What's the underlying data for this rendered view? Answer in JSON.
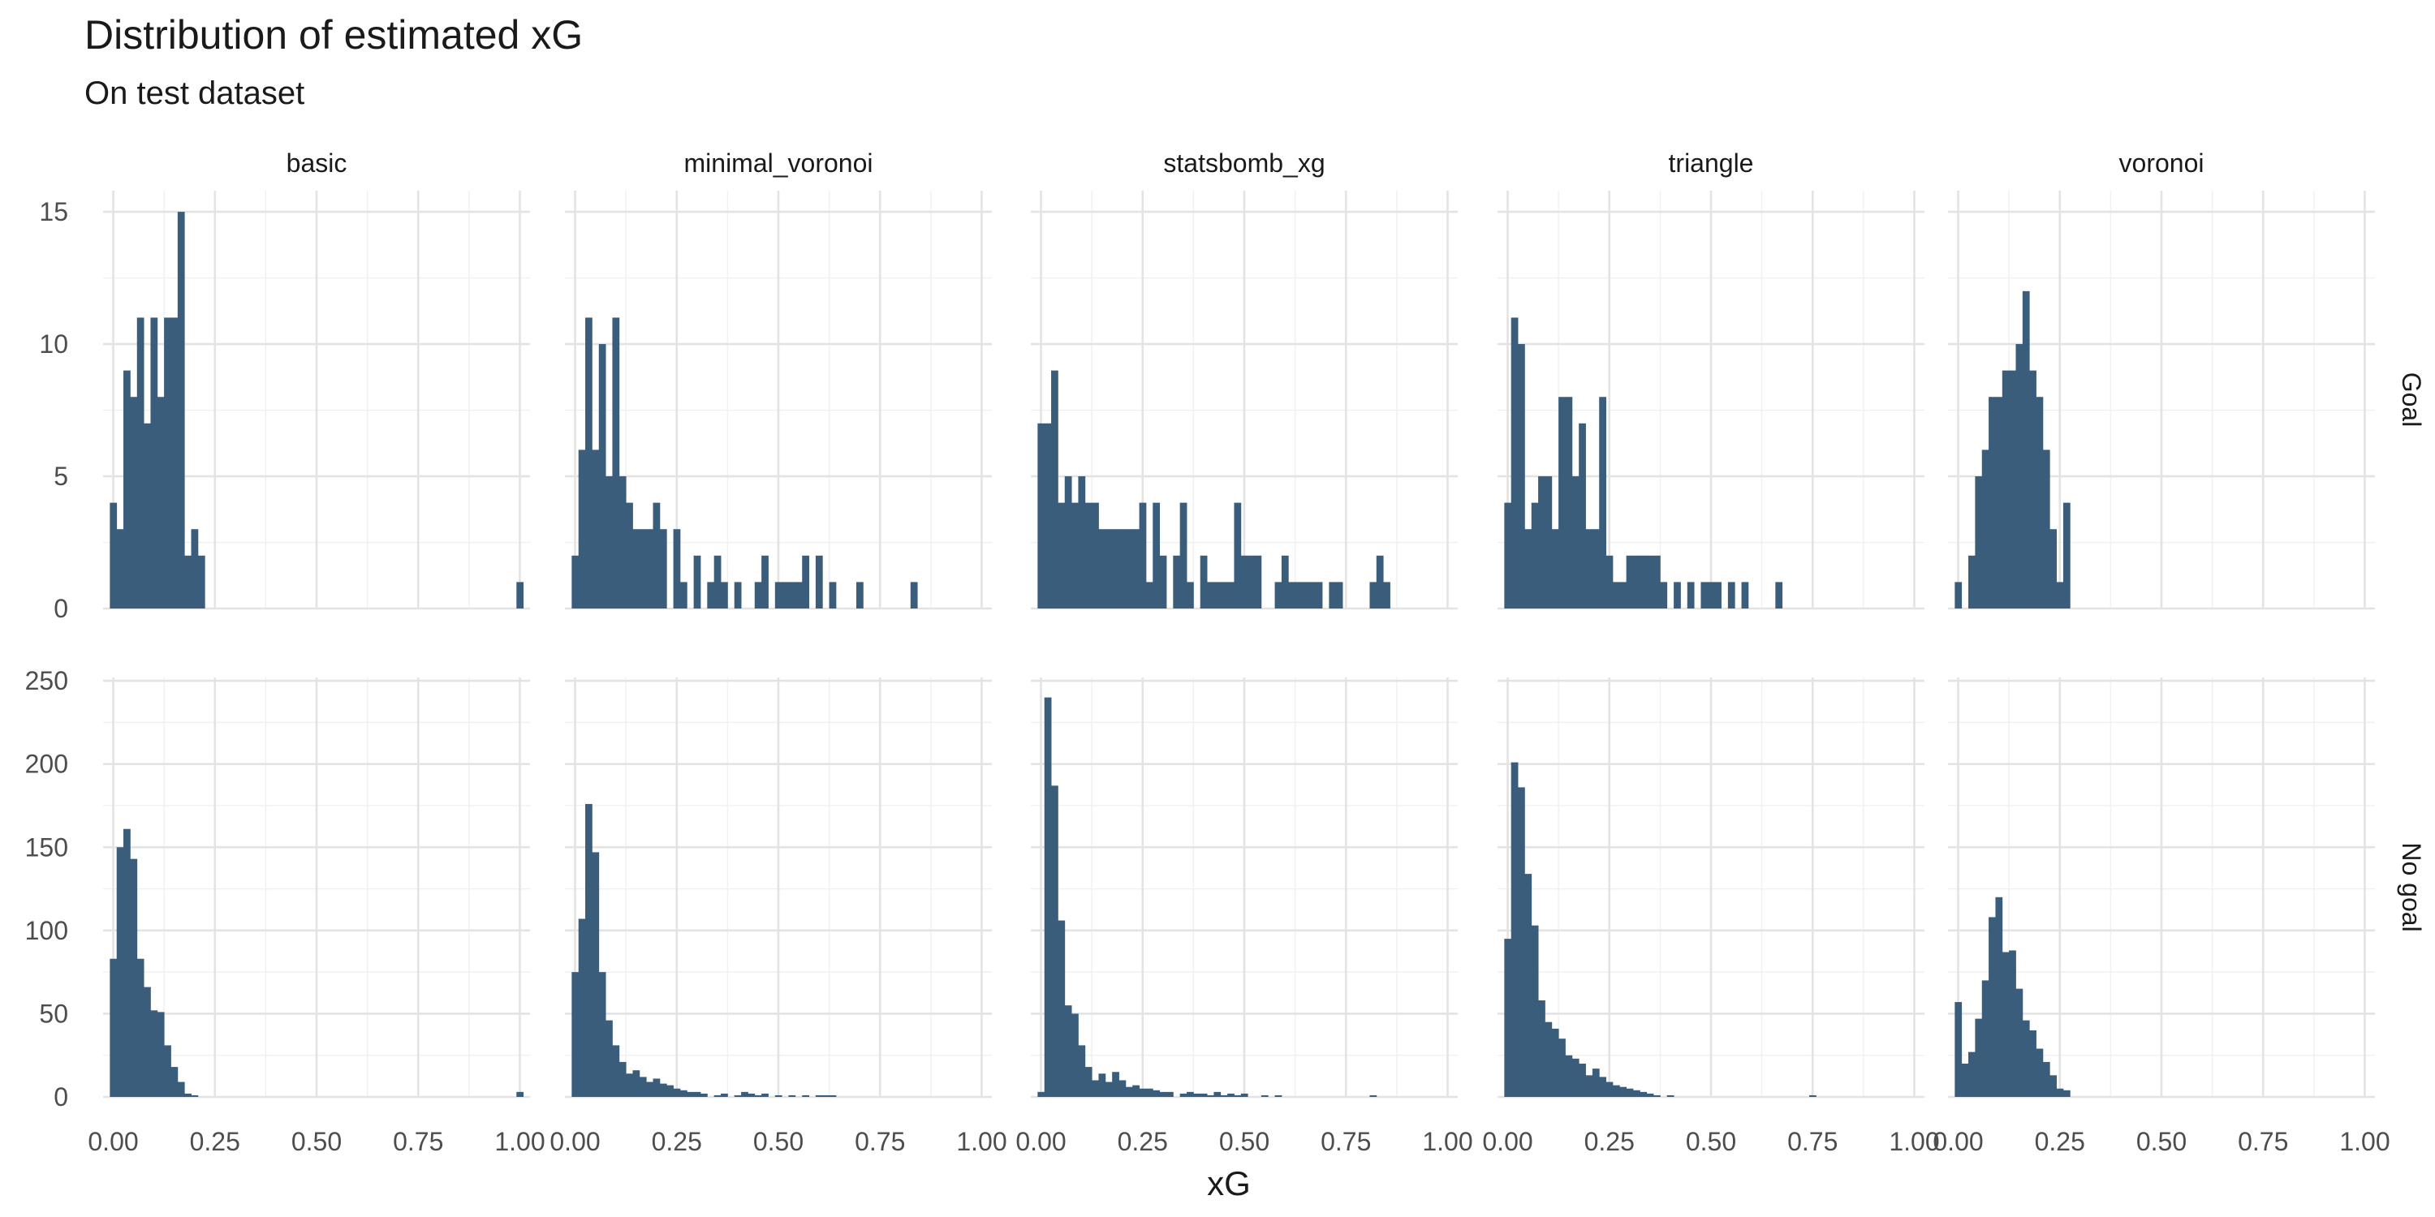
{
  "chart_data": {
    "type": "bar",
    "title": "Distribution of estimated xG",
    "subtitle": "On test dataset",
    "xlabel": "xG",
    "ylabel": "",
    "facet_cols": [
      "basic",
      "minimal_voronoi",
      "statsbomb_xg",
      "triangle",
      "voronoi"
    ],
    "facet_rows": [
      "Goal",
      "No goal"
    ],
    "x_ticks": [
      "0.00",
      "0.25",
      "0.50",
      "0.75",
      "1.00"
    ],
    "xlim": [
      -0.025,
      1.025
    ],
    "bin_width": 0.0167,
    "grid": true,
    "y_axes": [
      {
        "row": "Goal",
        "ylim": [
          0,
          15.8
        ],
        "ticks": [
          0,
          5,
          10,
          15
        ]
      },
      {
        "row": "No goal",
        "ylim": [
          0,
          252
        ],
        "ticks": [
          0,
          50,
          100,
          150,
          200,
          250
        ]
      }
    ],
    "panels": [
      {
        "facet": "basic",
        "row": "Goal",
        "bins": [
          [
            0.0,
            4
          ],
          [
            0.0167,
            3
          ],
          [
            0.0333,
            9
          ],
          [
            0.05,
            8
          ],
          [
            0.0667,
            11
          ],
          [
            0.0833,
            7
          ],
          [
            0.1,
            11
          ],
          [
            0.1167,
            8
          ],
          [
            0.1333,
            11
          ],
          [
            0.15,
            11
          ],
          [
            0.1667,
            15
          ],
          [
            0.1833,
            2
          ],
          [
            0.2,
            3
          ],
          [
            0.2167,
            2
          ],
          [
            1.0,
            1
          ]
        ]
      },
      {
        "facet": "minimal_voronoi",
        "row": "Goal",
        "bins": [
          [
            0.0,
            2
          ],
          [
            0.0167,
            6
          ],
          [
            0.0333,
            11
          ],
          [
            0.05,
            6
          ],
          [
            0.0667,
            10
          ],
          [
            0.0833,
            5
          ],
          [
            0.1,
            11
          ],
          [
            0.1167,
            5
          ],
          [
            0.1333,
            4
          ],
          [
            0.15,
            3
          ],
          [
            0.1667,
            3
          ],
          [
            0.1833,
            3
          ],
          [
            0.2,
            4
          ],
          [
            0.2167,
            3
          ],
          [
            0.25,
            3
          ],
          [
            0.2667,
            1
          ],
          [
            0.3,
            2
          ],
          [
            0.3333,
            1
          ],
          [
            0.35,
            2
          ],
          [
            0.3667,
            1
          ],
          [
            0.4,
            1
          ],
          [
            0.45,
            1
          ],
          [
            0.4667,
            2
          ],
          [
            0.5,
            1
          ],
          [
            0.5167,
            1
          ],
          [
            0.5333,
            1
          ],
          [
            0.55,
            1
          ],
          [
            0.5667,
            2
          ],
          [
            0.6,
            2
          ],
          [
            0.6333,
            1
          ],
          [
            0.7,
            1
          ],
          [
            0.8333,
            1
          ]
        ]
      },
      {
        "facet": "statsbomb_xg",
        "row": "Goal",
        "bins": [
          [
            0.0,
            7
          ],
          [
            0.0167,
            7
          ],
          [
            0.0333,
            9
          ],
          [
            0.05,
            4
          ],
          [
            0.0667,
            5
          ],
          [
            0.0833,
            4
          ],
          [
            0.1,
            5
          ],
          [
            0.1167,
            4
          ],
          [
            0.1333,
            4
          ],
          [
            0.15,
            3
          ],
          [
            0.1667,
            3
          ],
          [
            0.1833,
            3
          ],
          [
            0.2,
            3
          ],
          [
            0.2167,
            3
          ],
          [
            0.2333,
            3
          ],
          [
            0.25,
            4
          ],
          [
            0.2667,
            1
          ],
          [
            0.2833,
            4
          ],
          [
            0.3,
            2
          ],
          [
            0.3333,
            2
          ],
          [
            0.35,
            4
          ],
          [
            0.3667,
            1
          ],
          [
            0.4,
            2
          ],
          [
            0.4167,
            1
          ],
          [
            0.4333,
            1
          ],
          [
            0.45,
            1
          ],
          [
            0.4667,
            1
          ],
          [
            0.4833,
            4
          ],
          [
            0.5,
            2
          ],
          [
            0.5167,
            2
          ],
          [
            0.5333,
            2
          ],
          [
            0.5833,
            1
          ],
          [
            0.6,
            2
          ],
          [
            0.6167,
            1
          ],
          [
            0.6333,
            1
          ],
          [
            0.65,
            1
          ],
          [
            0.6667,
            1
          ],
          [
            0.6833,
            1
          ],
          [
            0.7167,
            1
          ],
          [
            0.7333,
            1
          ],
          [
            0.8167,
            1
          ],
          [
            0.8333,
            2
          ],
          [
            0.85,
            1
          ]
        ]
      },
      {
        "facet": "triangle",
        "row": "Goal",
        "bins": [
          [
            0.0,
            4
          ],
          [
            0.0167,
            11
          ],
          [
            0.0333,
            10
          ],
          [
            0.05,
            3
          ],
          [
            0.0667,
            4
          ],
          [
            0.0833,
            5
          ],
          [
            0.1,
            5
          ],
          [
            0.1167,
            3
          ],
          [
            0.1333,
            8
          ],
          [
            0.15,
            8
          ],
          [
            0.1667,
            5
          ],
          [
            0.1833,
            7
          ],
          [
            0.2,
            3
          ],
          [
            0.2167,
            3
          ],
          [
            0.2333,
            8
          ],
          [
            0.25,
            2
          ],
          [
            0.2667,
            1
          ],
          [
            0.2833,
            1
          ],
          [
            0.3,
            2
          ],
          [
            0.3167,
            2
          ],
          [
            0.3333,
            2
          ],
          [
            0.35,
            2
          ],
          [
            0.3667,
            2
          ],
          [
            0.3833,
            1
          ],
          [
            0.4167,
            1
          ],
          [
            0.45,
            1
          ],
          [
            0.4833,
            1
          ],
          [
            0.5,
            1
          ],
          [
            0.5167,
            1
          ],
          [
            0.55,
            1
          ],
          [
            0.5833,
            1
          ],
          [
            0.6667,
            1
          ]
        ]
      },
      {
        "facet": "voronoi",
        "row": "Goal",
        "bins": [
          [
            0.0,
            1
          ],
          [
            0.0333,
            2
          ],
          [
            0.05,
            5
          ],
          [
            0.0667,
            6
          ],
          [
            0.0833,
            8
          ],
          [
            0.1,
            8
          ],
          [
            0.1167,
            9
          ],
          [
            0.1333,
            9
          ],
          [
            0.15,
            10
          ],
          [
            0.1667,
            12
          ],
          [
            0.1833,
            9
          ],
          [
            0.2,
            8
          ],
          [
            0.2167,
            6
          ],
          [
            0.2333,
            3
          ],
          [
            0.25,
            1
          ],
          [
            0.2667,
            4
          ]
        ]
      },
      {
        "facet": "basic",
        "row": "No goal",
        "bins": [
          [
            0.0,
            83
          ],
          [
            0.0167,
            150
          ],
          [
            0.0333,
            161
          ],
          [
            0.05,
            143
          ],
          [
            0.0667,
            83
          ],
          [
            0.0833,
            66
          ],
          [
            0.1,
            52
          ],
          [
            0.1167,
            51
          ],
          [
            0.1333,
            31
          ],
          [
            0.15,
            18
          ],
          [
            0.1667,
            9
          ],
          [
            0.1833,
            2
          ],
          [
            0.2,
            1
          ],
          [
            1.0,
            3
          ]
        ]
      },
      {
        "facet": "minimal_voronoi",
        "row": "No goal",
        "bins": [
          [
            0.0,
            75
          ],
          [
            0.0167,
            107
          ],
          [
            0.0333,
            176
          ],
          [
            0.05,
            147
          ],
          [
            0.0667,
            75
          ],
          [
            0.0833,
            46
          ],
          [
            0.1,
            31
          ],
          [
            0.1167,
            21
          ],
          [
            0.1333,
            14
          ],
          [
            0.15,
            16
          ],
          [
            0.1667,
            12
          ],
          [
            0.1833,
            9
          ],
          [
            0.2,
            11
          ],
          [
            0.2167,
            8
          ],
          [
            0.2333,
            7
          ],
          [
            0.25,
            5
          ],
          [
            0.2667,
            4
          ],
          [
            0.2833,
            3
          ],
          [
            0.3,
            3
          ],
          [
            0.3167,
            2
          ],
          [
            0.35,
            1
          ],
          [
            0.3667,
            2
          ],
          [
            0.4,
            1
          ],
          [
            0.4167,
            3
          ],
          [
            0.4333,
            2
          ],
          [
            0.45,
            1
          ],
          [
            0.4667,
            2
          ],
          [
            0.5,
            1
          ],
          [
            0.5333,
            1
          ],
          [
            0.5667,
            1
          ],
          [
            0.6,
            1
          ],
          [
            0.6167,
            1
          ],
          [
            0.6333,
            1
          ]
        ]
      },
      {
        "facet": "statsbomb_xg",
        "row": "No goal",
        "bins": [
          [
            0.0,
            3
          ],
          [
            0.0167,
            240
          ],
          [
            0.0333,
            187
          ],
          [
            0.05,
            106
          ],
          [
            0.0667,
            55
          ],
          [
            0.0833,
            50
          ],
          [
            0.1,
            31
          ],
          [
            0.1167,
            18
          ],
          [
            0.1333,
            10
          ],
          [
            0.15,
            14
          ],
          [
            0.1667,
            9
          ],
          [
            0.1833,
            15
          ],
          [
            0.2,
            10
          ],
          [
            0.2167,
            6
          ],
          [
            0.2333,
            7
          ],
          [
            0.25,
            5
          ],
          [
            0.2667,
            5
          ],
          [
            0.2833,
            4
          ],
          [
            0.3,
            3
          ],
          [
            0.3167,
            3
          ],
          [
            0.35,
            2
          ],
          [
            0.3667,
            3
          ],
          [
            0.3833,
            2
          ],
          [
            0.4,
            2
          ],
          [
            0.4167,
            1
          ],
          [
            0.4333,
            3
          ],
          [
            0.45,
            1
          ],
          [
            0.4667,
            2
          ],
          [
            0.4833,
            1
          ],
          [
            0.5,
            2
          ],
          [
            0.55,
            1
          ],
          [
            0.5833,
            1
          ],
          [
            0.8167,
            1
          ]
        ]
      },
      {
        "facet": "triangle",
        "row": "No goal",
        "bins": [
          [
            0.0,
            95
          ],
          [
            0.0167,
            201
          ],
          [
            0.0333,
            186
          ],
          [
            0.05,
            134
          ],
          [
            0.0667,
            103
          ],
          [
            0.0833,
            58
          ],
          [
            0.1,
            45
          ],
          [
            0.1167,
            41
          ],
          [
            0.1333,
            35
          ],
          [
            0.15,
            25
          ],
          [
            0.1667,
            23
          ],
          [
            0.1833,
            20
          ],
          [
            0.2,
            13
          ],
          [
            0.2167,
            17
          ],
          [
            0.2333,
            12
          ],
          [
            0.25,
            9
          ],
          [
            0.2667,
            7
          ],
          [
            0.2833,
            6
          ],
          [
            0.3,
            5
          ],
          [
            0.3167,
            4
          ],
          [
            0.3333,
            3
          ],
          [
            0.35,
            2
          ],
          [
            0.3667,
            1
          ],
          [
            0.4,
            1
          ],
          [
            0.75,
            1
          ]
        ]
      },
      {
        "facet": "voronoi",
        "row": "No goal",
        "bins": [
          [
            0.0,
            57
          ],
          [
            0.0167,
            20
          ],
          [
            0.0333,
            27
          ],
          [
            0.05,
            47
          ],
          [
            0.0667,
            70
          ],
          [
            0.0833,
            108
          ],
          [
            0.1,
            120
          ],
          [
            0.1167,
            87
          ],
          [
            0.1333,
            88
          ],
          [
            0.15,
            65
          ],
          [
            0.1667,
            46
          ],
          [
            0.1833,
            40
          ],
          [
            0.2,
            29
          ],
          [
            0.2167,
            21
          ],
          [
            0.2333,
            13
          ],
          [
            0.25,
            5
          ],
          [
            0.2667,
            4
          ]
        ]
      }
    ]
  }
}
